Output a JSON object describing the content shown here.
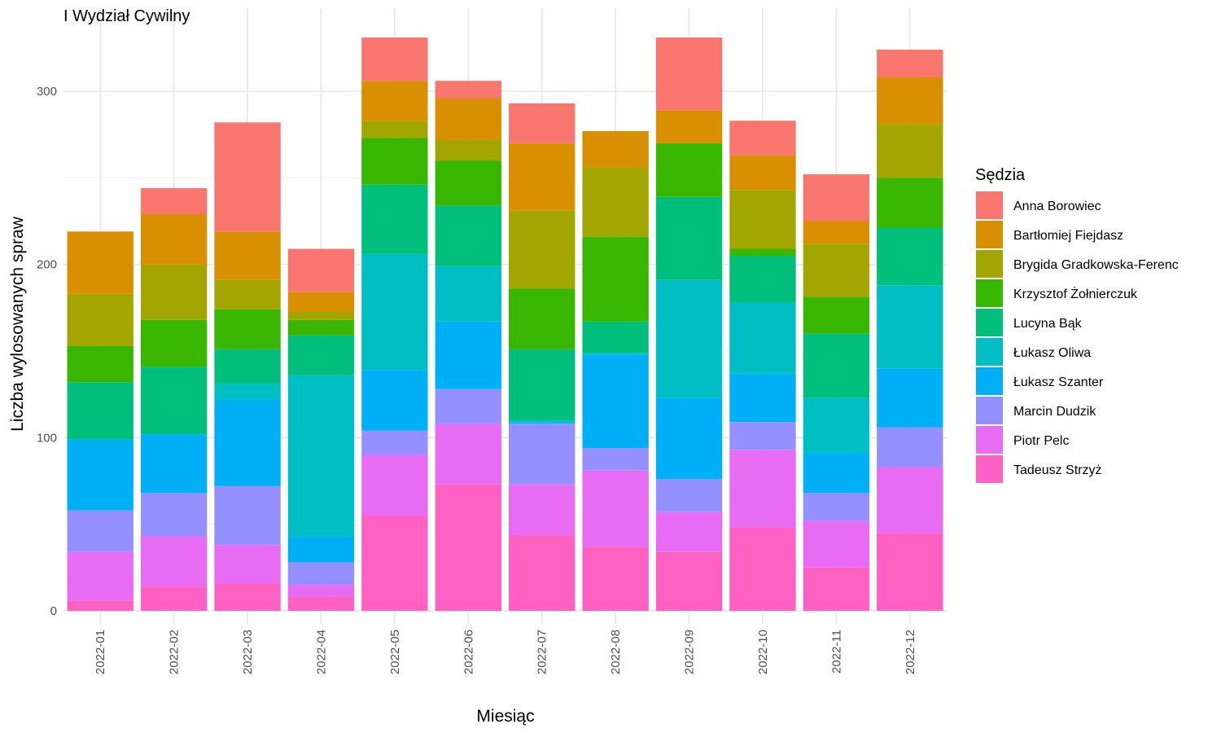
{
  "chart_data": {
    "type": "bar",
    "stacked": true,
    "title": "I Wydział Cywilny",
    "xlabel": "Miesiąc",
    "ylabel": "Liczba wylosowanych spraw",
    "ylim": [
      0,
      345
    ],
    "yticks": [
      0,
      100,
      200,
      300
    ],
    "grid": true,
    "legend_position": "right",
    "legend_title": "Sędzia",
    "categories": [
      "2022-01",
      "2022-02",
      "2022-03",
      "2022-04",
      "2022-05",
      "2022-06",
      "2022-07",
      "2022-08",
      "2022-09",
      "2022-10",
      "2022-11",
      "2022-12"
    ],
    "series": [
      {
        "name": "Tadeusz Strzyż",
        "color": "#FF61C3",
        "values": [
          6,
          14,
          16,
          8,
          55,
          73,
          44,
          37,
          34,
          48,
          25,
          45
        ]
      },
      {
        "name": "Piotr Pelc",
        "color": "#E76BF3",
        "values": [
          28,
          29,
          22,
          7,
          35,
          35,
          29,
          44,
          23,
          45,
          27,
          38
        ]
      },
      {
        "name": "Marcin Dudzik",
        "color": "#9590FF",
        "values": [
          24,
          25,
          34,
          13,
          14,
          20,
          35,
          13,
          19,
          16,
          16,
          23
        ]
      },
      {
        "name": "Łukasz Szanter",
        "color": "#00B0F6",
        "values": [
          41,
          34,
          50,
          15,
          35,
          39,
          1,
          54,
          47,
          28,
          23,
          34
        ]
      },
      {
        "name": "Łukasz Oliwa",
        "color": "#00BFC4",
        "values": [
          0,
          0,
          9,
          93,
          67,
          32,
          1,
          1,
          68,
          41,
          32,
          48
        ]
      },
      {
        "name": "Lucyna Bąk",
        "color": "#00BF7D",
        "values": [
          33,
          39,
          20,
          23,
          40,
          35,
          41,
          18,
          48,
          27,
          37,
          33
        ]
      },
      {
        "name": "Krzysztof Żołnierczuk",
        "color": "#39B600",
        "values": [
          21,
          27,
          23,
          9,
          27,
          26,
          35,
          49,
          31,
          4,
          21,
          29
        ]
      },
      {
        "name": "Brygida Gradkowska-Ferenc",
        "color": "#A3A500",
        "values": [
          30,
          32,
          17,
          5,
          10,
          12,
          45,
          40,
          0,
          34,
          31,
          31
        ]
      },
      {
        "name": "Bartłomiej Fiejdasz",
        "color": "#D89000",
        "values": [
          36,
          29,
          28,
          11,
          23,
          24,
          39,
          21,
          19,
          20,
          13,
          27
        ]
      },
      {
        "name": "Anna Borowiec",
        "color": "#F8766D",
        "values": [
          0,
          15,
          63,
          25,
          25,
          10,
          23,
          0,
          42,
          20,
          27,
          16
        ]
      }
    ],
    "legend_order": [
      "Anna Borowiec",
      "Bartłomiej Fiejdasz",
      "Brygida Gradkowska-Ferenc",
      "Krzysztof Żołnierczuk",
      "Lucyna Bąk",
      "Łukasz Oliwa",
      "Łukasz Szanter",
      "Marcin Dudzik",
      "Piotr Pelc",
      "Tadeusz Strzyż"
    ]
  }
}
